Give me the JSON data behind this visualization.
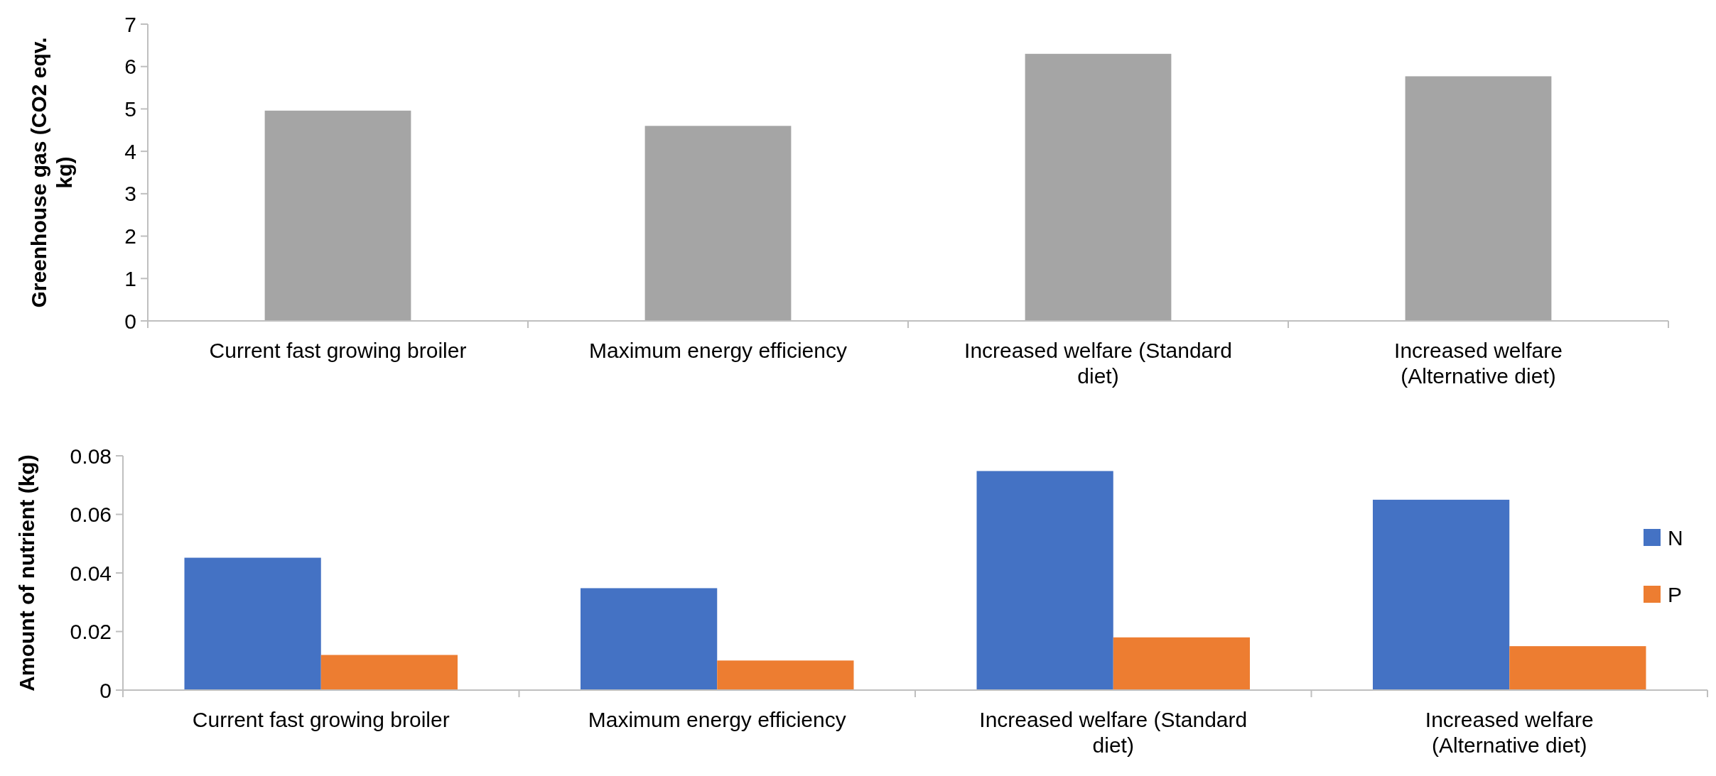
{
  "chart_data": [
    {
      "type": "bar",
      "ylabel": "Greenhouse gas (CO2 eqv. kg)",
      "categories": [
        "Current fast growing broiler",
        "Maximum energy efficiency",
        "Increased welfare (Standard diet)",
        "Increased welfare (Alternative diet)"
      ],
      "series": [
        {
          "color": "#a5a5a5",
          "values": [
            4.96,
            4.6,
            6.3,
            5.77
          ]
        }
      ],
      "ylim": [
        0,
        7
      ],
      "yticks": [
        0,
        1,
        2,
        3,
        4,
        5,
        6,
        7
      ],
      "grid": false,
      "legend": false
    },
    {
      "type": "bar",
      "ylabel": "Amount of nutrient (kg)",
      "categories": [
        "Current fast growing broiler",
        "Maximum energy efficiency",
        "Increased welfare (Standard diet)",
        "Increased welfare (Alternative diet)"
      ],
      "series": [
        {
          "name": "N",
          "color": "#4472c4",
          "values": [
            0.0452,
            0.0348,
            0.0748,
            0.065
          ]
        },
        {
          "name": "P",
          "color": "#ed7d31",
          "values": [
            0.012,
            0.0101,
            0.018,
            0.015
          ]
        }
      ],
      "ylim": [
        0,
        0.08
      ],
      "yticks": [
        0,
        0.02,
        0.04,
        0.06,
        0.08
      ],
      "grid": false,
      "legend": "right"
    }
  ]
}
